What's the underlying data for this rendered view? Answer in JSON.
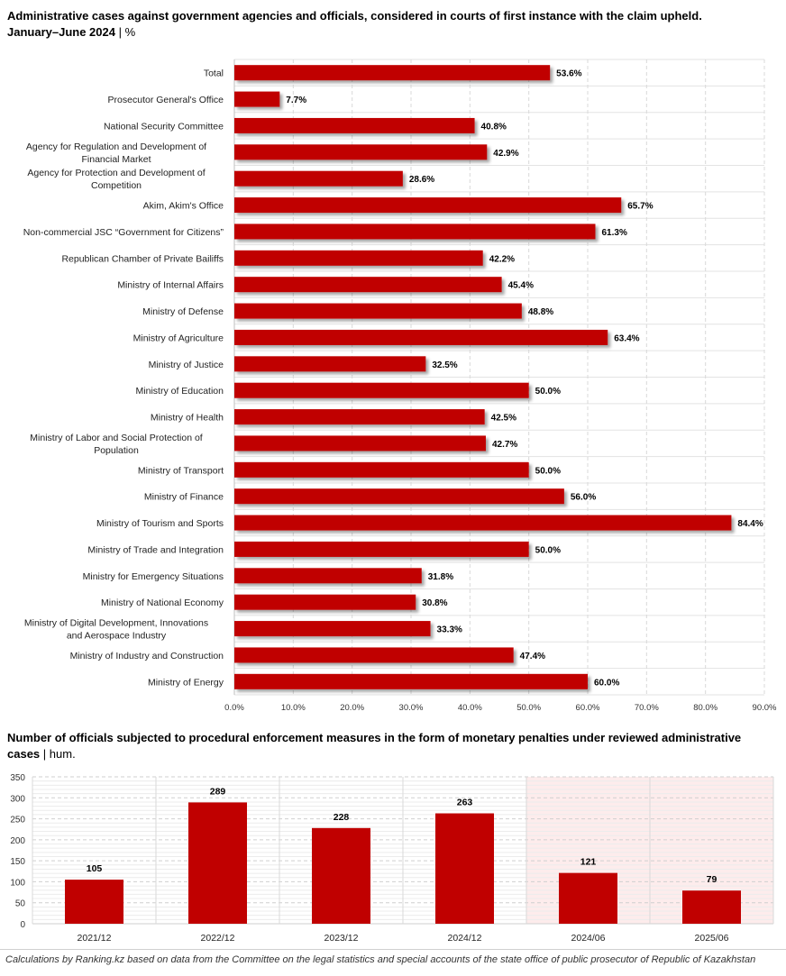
{
  "chart_data": [
    {
      "type": "bar",
      "orientation": "horizontal",
      "title": "Administrative cases against government agencies and officials, considered in courts of first instance with the claim upheld.",
      "subtitle": "January–June 2024",
      "unit": "%",
      "categories": [
        "Total",
        "Prosecutor General's Office",
        "National Security Committee",
        "Agency for Regulation and Development of Financial Market",
        "Agency for Protection and Development of Competition",
        "Akim, Akim's Office",
        "Non-commercial JSC “Government for Citizens”",
        "Republican Chamber of Private Bailiffs",
        "Ministry of Internal Affairs",
        "Ministry of Defense",
        "Ministry of Agriculture",
        "Ministry of Justice",
        "Ministry of Education",
        "Ministry of Health",
        "Ministry of Labor and Social Protection of Population",
        "Ministry of Transport",
        "Ministry of Finance",
        "Ministry of Tourism and Sports",
        "Ministry of Trade and Integration",
        "Ministry for Emergency Situations",
        "Ministry of National Economy",
        "Ministry of Digital Development, Innovations and Aerospace Industry",
        "Ministry of Industry and Construction",
        "Ministry of Energy"
      ],
      "values": [
        53.6,
        7.7,
        40.8,
        42.9,
        28.6,
        65.7,
        61.3,
        42.2,
        45.4,
        48.8,
        63.4,
        32.5,
        50.0,
        42.5,
        42.7,
        50.0,
        56.0,
        84.4,
        50.0,
        31.8,
        30.8,
        33.3,
        47.4,
        60.0
      ],
      "value_labels": [
        "53.6%",
        "7.7%",
        "40.8%",
        "42.9%",
        "28.6%",
        "65.7%",
        "61.3%",
        "42.2%",
        "45.4%",
        "48.8%",
        "63.4%",
        "32.5%",
        "50.0%",
        "42.5%",
        "42.7%",
        "50.0%",
        "56.0%",
        "84.4%",
        "50.0%",
        "31.8%",
        "30.8%",
        "33.3%",
        "47.4%",
        "60.0%"
      ],
      "x_ticks": [
        "0.0%",
        "10.0%",
        "20.0%",
        "30.0%",
        "40.0%",
        "50.0%",
        "60.0%",
        "70.0%",
        "80.0%",
        "90.0%"
      ],
      "xlim": [
        0,
        90
      ],
      "xlabel": "",
      "ylabel": "",
      "color": "#c00000",
      "grid": true
    },
    {
      "type": "bar",
      "orientation": "vertical",
      "title": "Number of officials subjected to procedural enforcement measures in the form of monetary penalties under reviewed administrative cases",
      "unit": "hum.",
      "categories": [
        "2021/12",
        "2022/12",
        "2023/12",
        "2024/12",
        "2024/06",
        "2025/06"
      ],
      "values": [
        105,
        289,
        228,
        263,
        121,
        79
      ],
      "value_labels": [
        "105",
        "289",
        "228",
        "263",
        "121",
        "79"
      ],
      "y_ticks": [
        "0",
        "50",
        "100",
        "150",
        "200",
        "250",
        "300",
        "350"
      ],
      "ylim": [
        0,
        350
      ],
      "xlabel": "",
      "ylabel": "",
      "color": "#c00000",
      "highlight_color": "#fdecec",
      "highlighted_categories": [
        "2024/06",
        "2025/06"
      ],
      "grid": true
    }
  ],
  "footer": "Calculations by Ranking.kz based on data from the Committee on the legal statistics and special accounts of the state office of public prosecutor of Republic of Kazakhstan"
}
